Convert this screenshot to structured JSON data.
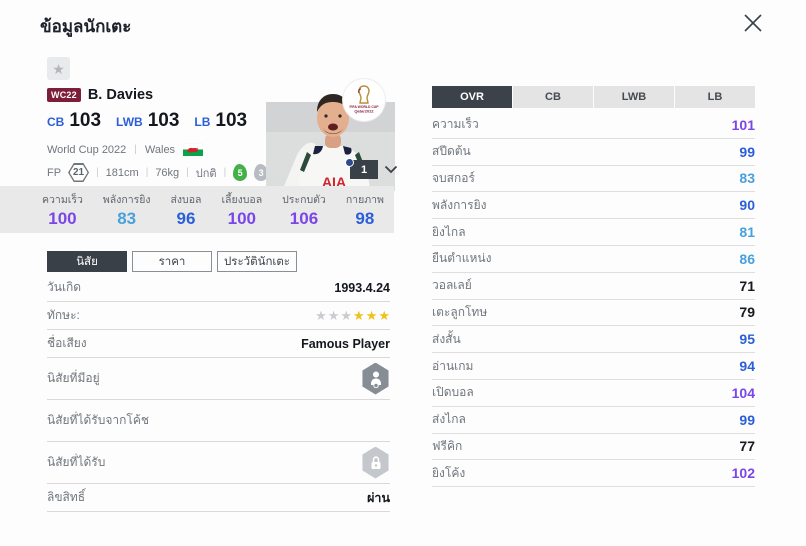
{
  "window": {
    "title": "ข้อมูลนักเตะ"
  },
  "player": {
    "card_badge": "WC22",
    "name": "B. Davies",
    "positions": [
      {
        "label": "CB",
        "value": "103"
      },
      {
        "label": "LWB",
        "value": "103"
      },
      {
        "label": "LB",
        "value": "103"
      }
    ],
    "tournament": "World Cup 2022",
    "nation": "Wales",
    "fp_label": "FP",
    "fp_value": "21",
    "height": "181cm",
    "weight": "76kg",
    "condition": "ปกติ",
    "left_foot": "5",
    "right_foot": "3",
    "level": "1"
  },
  "main_stats": [
    {
      "label": "ความเร็ว",
      "value": "100",
      "tier": "purple"
    },
    {
      "label": "พลังการยิง",
      "value": "83",
      "tier": "lightblue"
    },
    {
      "label": "ส่งบอล",
      "value": "96",
      "tier": "blue"
    },
    {
      "label": "เลี้ยงบอล",
      "value": "100",
      "tier": "purple"
    },
    {
      "label": "ประกบตัว",
      "value": "106",
      "tier": "purple"
    },
    {
      "label": "กายภาพ",
      "value": "98",
      "tier": "blue"
    }
  ],
  "detail_tabs": [
    {
      "label": "นิสัย",
      "selected": true
    },
    {
      "label": "ราคา",
      "selected": false
    },
    {
      "label": "ประวัตินักเตะ",
      "selected": false
    }
  ],
  "details": {
    "birthdate": {
      "label": "วันเกิด",
      "value": "1993.4.24"
    },
    "skill": {
      "label": "ทักษะ:",
      "stars_empty": 3,
      "stars_filled": 3
    },
    "fame": {
      "label": "ชื่อเสียง",
      "value": "Famous Player"
    },
    "trait_owned": {
      "label": "นิสัยที่มีอยู่"
    },
    "trait_coach": {
      "label": "นิสัยที่ได้รับจากโค้ช"
    },
    "trait_received": {
      "label": "นิสัยที่ได้รับ"
    },
    "license": {
      "label": "ลิขสิทธิ์",
      "value": "ผ่าน"
    }
  },
  "right_panel": {
    "tabs": [
      {
        "label": "OVR",
        "selected": true
      },
      {
        "label": "CB",
        "selected": false
      },
      {
        "label": "LWB",
        "selected": false
      },
      {
        "label": "LB",
        "selected": false
      }
    ],
    "stats": [
      {
        "label": "ความเร็ว",
        "value": "101",
        "tier": "purple"
      },
      {
        "label": "สปีดต้น",
        "value": "99",
        "tier": "blue"
      },
      {
        "label": "จบสกอร์",
        "value": "83",
        "tier": "lightblue"
      },
      {
        "label": "พลังการยิง",
        "value": "90",
        "tier": "blue"
      },
      {
        "label": "ยิงไกล",
        "value": "81",
        "tier": "lightblue"
      },
      {
        "label": "ยืนตำแหน่ง",
        "value": "86",
        "tier": "lightblue"
      },
      {
        "label": "วอลเลย์",
        "value": "71",
        "tier": "dark"
      },
      {
        "label": "เตะลูกโทษ",
        "value": "79",
        "tier": "dark"
      },
      {
        "label": "ส่งสั้น",
        "value": "95",
        "tier": "blue"
      },
      {
        "label": "อ่านเกม",
        "value": "94",
        "tier": "blue"
      },
      {
        "label": "เปิดบอล",
        "value": "104",
        "tier": "purple"
      },
      {
        "label": "ส่งไกล",
        "value": "99",
        "tier": "blue"
      },
      {
        "label": "ฟรีคิก",
        "value": "77",
        "tier": "dark"
      },
      {
        "label": "ยิงโค้ง",
        "value": "102",
        "tier": "purple"
      }
    ]
  },
  "colors": {
    "purple": "#7b45e8",
    "blue": "#2b5fd9",
    "lightblue": "#49a0dd",
    "dark": "#16191f",
    "badge_red": "#7c1d39",
    "tab_dark": "#3a4047",
    "band_gray": "#e9e9e9"
  }
}
